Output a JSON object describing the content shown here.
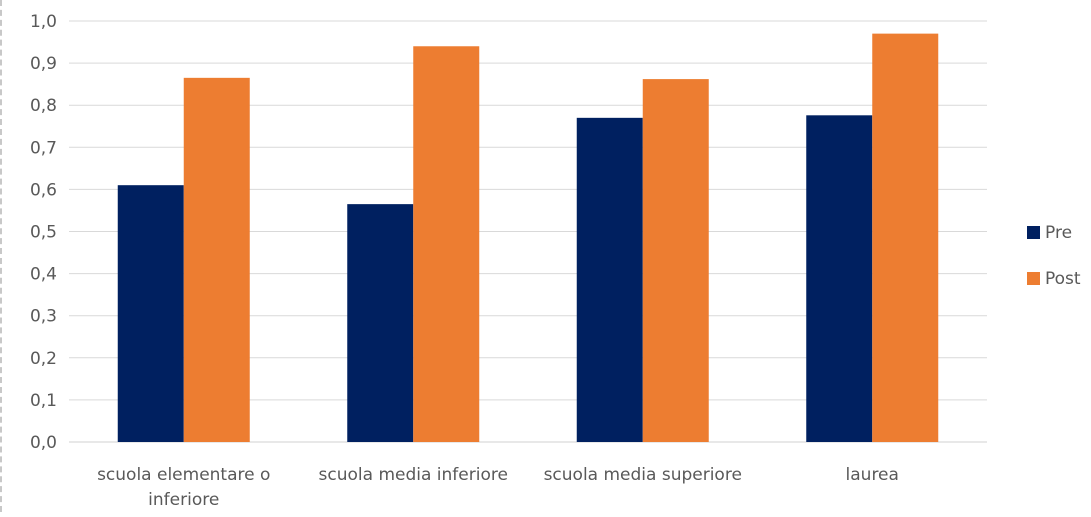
{
  "chart_data": {
    "type": "bar",
    "categories": [
      [
        "scuola elementare o",
        "inferiore"
      ],
      [
        "scuola media inferiore"
      ],
      [
        "scuola media superiore"
      ],
      [
        "laurea"
      ]
    ],
    "series": [
      {
        "name": "Pre",
        "color": "#002060",
        "values": [
          0.61,
          0.565,
          0.77,
          0.776
        ]
      },
      {
        "name": "Post",
        "color": "#ED7D31",
        "values": [
          0.865,
          0.94,
          0.862,
          0.97
        ]
      }
    ],
    "y_ticks": [
      "0,0",
      "0,1",
      "0,2",
      "0,3",
      "0,4",
      "0,5",
      "0,6",
      "0,7",
      "0,8",
      "0,9",
      "1,0"
    ],
    "ylim": [
      0,
      1
    ],
    "grid": true,
    "legend_position": "right",
    "gridline_color": "#d9d9d9",
    "text_color": "#595959"
  }
}
